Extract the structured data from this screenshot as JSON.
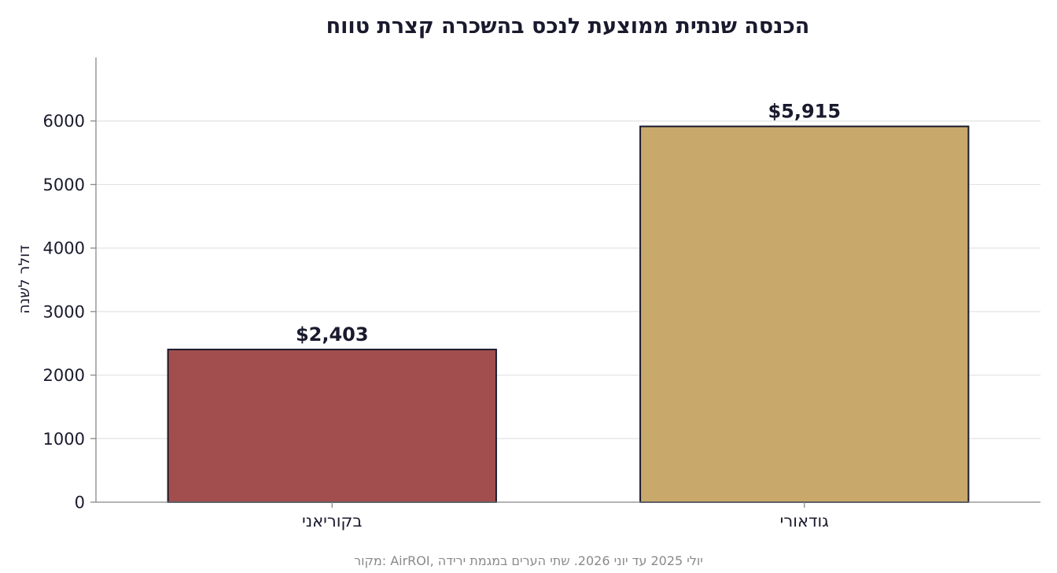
{
  "chart_data": {
    "type": "bar",
    "title": "הכנסה שנתית ממוצעת לנכס בהשכרה קצרת טווח",
    "xlabel": "",
    "ylabel": "דולר לשנה",
    "categories": [
      "גודאורי",
      "בקוריאני"
    ],
    "values": [
      5915,
      2403
    ],
    "data_labels": [
      "$5,915",
      "$2,403"
    ],
    "colors": [
      "#c9a96b",
      "#a34e4e"
    ],
    "bar_edge_color": "#1a1a2e",
    "ylim": [
      0,
      7000
    ],
    "yticks": [
      0,
      1000,
      2000,
      3000,
      4000,
      5000,
      6000
    ],
    "grid": true,
    "legend": "none",
    "source": "מקור: AirROI, יולי 2025 עד יוני 2026. שתי הערים במגמת ירידה"
  }
}
